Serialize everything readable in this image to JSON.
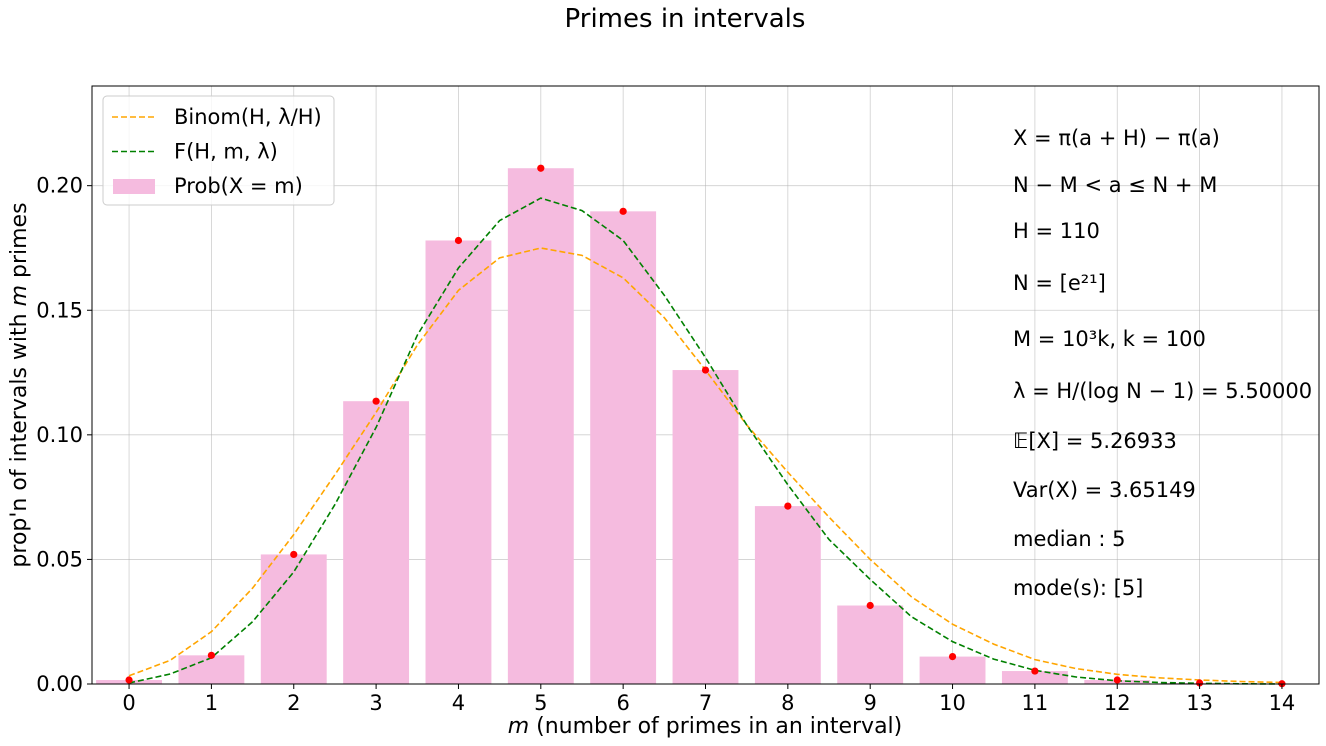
{
  "chart_data": {
    "type": "bar",
    "title": "Primes in intervals",
    "xlabel": {
      "var": "m",
      "text": " (number of primes in an interval)"
    },
    "ylabel": {
      "pre": "prop'n of intervals with ",
      "var": "m",
      "post": " primes"
    },
    "categories": [
      0,
      1,
      2,
      3,
      4,
      5,
      6,
      7,
      8,
      9,
      10,
      11,
      12,
      13,
      14
    ],
    "values": [
      0.0016,
      0.0115,
      0.052,
      0.1135,
      0.178,
      0.207,
      0.1897,
      0.126,
      0.0714,
      0.0315,
      0.011,
      0.0052,
      0.0016,
      0.0004,
      0.0001
    ],
    "xlim": [
      -0.45,
      14.45
    ],
    "ylim": [
      0,
      0.24
    ],
    "yticks": [
      0.0,
      0.05,
      0.1,
      0.15,
      0.2
    ],
    "ytick_labels": [
      "0.00",
      "0.05",
      "0.10",
      "0.15",
      "0.20"
    ],
    "xtick_labels": [
      "0",
      "1",
      "2",
      "3",
      "4",
      "5",
      "6",
      "7",
      "8",
      "9",
      "10",
      "11",
      "12",
      "13",
      "14"
    ],
    "grid": true,
    "legend_position": "upper-left",
    "legend": [
      {
        "label": "Binom(H, λ/H)",
        "style": "dashed",
        "color": "#ffa500"
      },
      {
        "label": "F(H, m, λ)",
        "style": "dashed",
        "color": "#008000"
      },
      {
        "label": "Prob(X = m)",
        "style": "patch",
        "color": "#f5bbdf"
      }
    ],
    "series": [
      {
        "name": "Prob(X = m)",
        "kind": "bar",
        "color": "#f5bbdf"
      },
      {
        "name": "Prob(X = m)",
        "kind": "points",
        "color": "#ff0000"
      },
      {
        "name": "Binom(H, λ/H)",
        "kind": "curve",
        "color": "#ffa500",
        "dashed": true,
        "x": [
          0,
          0.5,
          1,
          1.5,
          2,
          2.5,
          3,
          3.5,
          4,
          4.5,
          5,
          5.5,
          6,
          6.5,
          7,
          7.5,
          8,
          8.5,
          9,
          9.5,
          10,
          10.5,
          11,
          11.5,
          12,
          12.5,
          13,
          13.5,
          14
        ],
        "y": [
          0.0033,
          0.0095,
          0.021,
          0.0385,
          0.06,
          0.084,
          0.109,
          0.136,
          0.158,
          0.171,
          0.175,
          0.172,
          0.163,
          0.147,
          0.126,
          0.104,
          0.085,
          0.067,
          0.05,
          0.035,
          0.024,
          0.016,
          0.0098,
          0.0062,
          0.0039,
          0.0025,
          0.0016,
          0.001,
          0.0006
        ]
      },
      {
        "name": "F(H, m, λ)",
        "kind": "curve",
        "color": "#008000",
        "dashed": true,
        "x": [
          0,
          0.5,
          1,
          1.5,
          2,
          2.5,
          3,
          3.5,
          4,
          4.5,
          5,
          5.5,
          6,
          6.5,
          7,
          7.5,
          8,
          8.5,
          9,
          9.5,
          10,
          10.5,
          11,
          11.5,
          12,
          12.5,
          13,
          13.5,
          14
        ],
        "y": [
          0.0004,
          0.004,
          0.0105,
          0.025,
          0.045,
          0.072,
          0.103,
          0.14,
          0.167,
          0.186,
          0.195,
          0.19,
          0.178,
          0.156,
          0.131,
          0.104,
          0.08,
          0.058,
          0.042,
          0.027,
          0.017,
          0.01,
          0.0055,
          0.0028,
          0.0013,
          0.0006,
          0.0003,
          0.0001,
          0.0
        ]
      }
    ],
    "annotations": [
      "X = π(a + H) − π(a)",
      "N − M < a ≤ N + M",
      "H = 110",
      "N = [e²¹]",
      "M = 10³k, k = 100",
      "λ = H/(log N − 1) = 5.50000",
      "𝔼[X] = 5.26933",
      "Var(X) = 3.65149",
      "median : 5",
      "mode(s): [5]"
    ]
  }
}
